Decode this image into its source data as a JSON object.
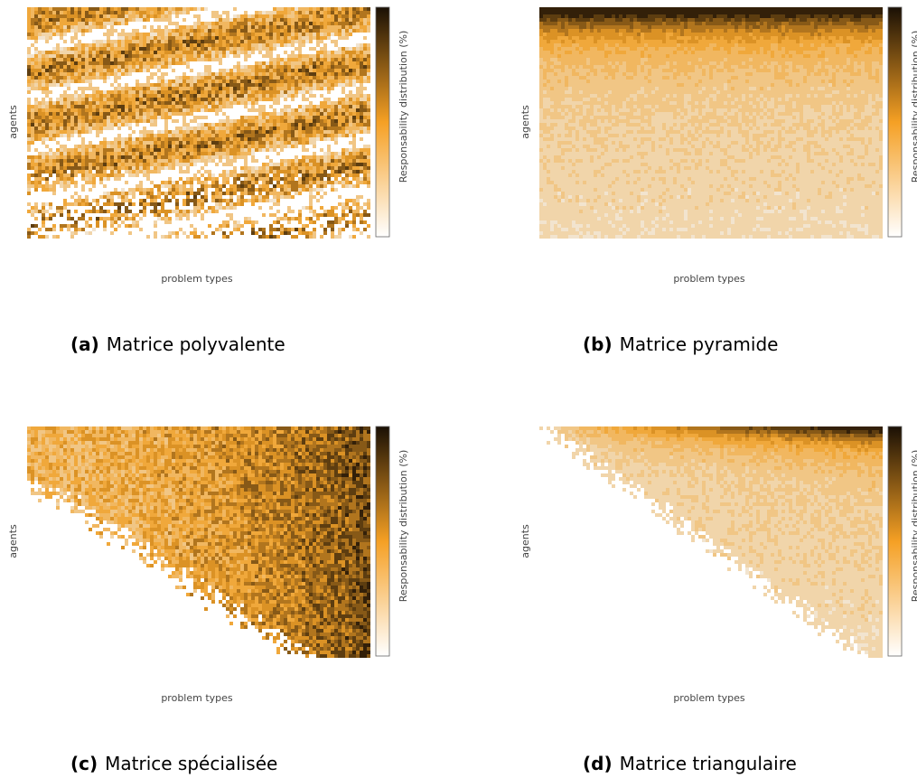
{
  "panels": [
    {
      "y_label": "agents",
      "x_label": "problem types",
      "colorbar_label": "Responsability distribution (%)",
      "caption_label": "(a)",
      "caption_text": "Matrice polyvalente"
    },
    {
      "y_label": "agents",
      "x_label": "problem types",
      "colorbar_label": "Responsability distribution (%)",
      "caption_label": "(b)",
      "caption_text": "Matrice pyramide"
    },
    {
      "y_label": "agents",
      "x_label": "problem types",
      "colorbar_label": "Responsability distribution (%)",
      "caption_label": "(c)",
      "caption_text": "Matrice spécialisée"
    },
    {
      "y_label": "agents",
      "x_label": "problem types",
      "colorbar_label": "Responsability distribution (%)",
      "caption_label": "(d)",
      "caption_text": "Matrice triangulaire"
    }
  ]
}
